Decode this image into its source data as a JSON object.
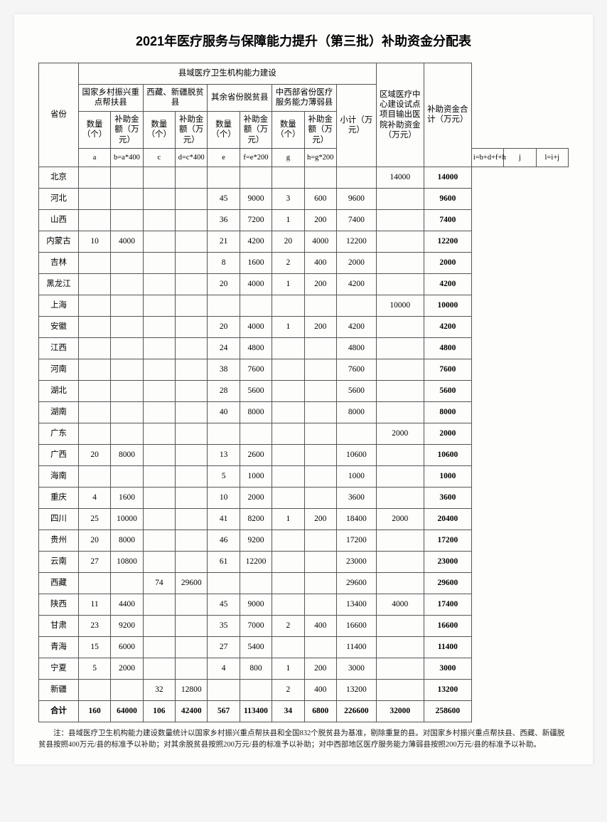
{
  "title": "2021年医疗服务与保障能力提升（第三批）补助资金分配表",
  "headers": {
    "province": "省份",
    "group_county": "县域医疗卫生机构能力建设",
    "group_a": "国家乡村振兴重点帮扶县",
    "group_c": "西藏、新疆脱贫县",
    "group_e": "其余省份脱贫县",
    "group_g": "中西部省份医疗服务能力薄弱县",
    "subtotal": "小计（万元）",
    "j": "区域医疗中心建设试点项目输出医院补助资金（万元）",
    "l": "补助资金合计（万元）",
    "qty": "数量（个）",
    "amt": "补助金额（万元）",
    "fa": "a",
    "fb": "b=a*400",
    "fc": "c",
    "fd": "d=c*400",
    "fe": "e",
    "ff": "f=e*200",
    "fg": "g",
    "fh": "h=g*200",
    "fi": "i=b+d+f+h",
    "fj": "j",
    "fl": "l=i+j"
  },
  "rows": [
    {
      "p": "北京",
      "a": "",
      "b": "",
      "c": "",
      "d": "",
      "e": "",
      "f": "",
      "g": "",
      "h": "",
      "i": "",
      "j": "14000",
      "l": "14000"
    },
    {
      "p": "河北",
      "a": "",
      "b": "",
      "c": "",
      "d": "",
      "e": "45",
      "f": "9000",
      "g": "3",
      "h": "600",
      "i": "9600",
      "j": "",
      "l": "9600"
    },
    {
      "p": "山西",
      "a": "",
      "b": "",
      "c": "",
      "d": "",
      "e": "36",
      "f": "7200",
      "g": "1",
      "h": "200",
      "i": "7400",
      "j": "",
      "l": "7400"
    },
    {
      "p": "内蒙古",
      "a": "10",
      "b": "4000",
      "c": "",
      "d": "",
      "e": "21",
      "f": "4200",
      "g": "20",
      "h": "4000",
      "i": "12200",
      "j": "",
      "l": "12200"
    },
    {
      "p": "吉林",
      "a": "",
      "b": "",
      "c": "",
      "d": "",
      "e": "8",
      "f": "1600",
      "g": "2",
      "h": "400",
      "i": "2000",
      "j": "",
      "l": "2000"
    },
    {
      "p": "黑龙江",
      "a": "",
      "b": "",
      "c": "",
      "d": "",
      "e": "20",
      "f": "4000",
      "g": "1",
      "h": "200",
      "i": "4200",
      "j": "",
      "l": "4200"
    },
    {
      "p": "上海",
      "a": "",
      "b": "",
      "c": "",
      "d": "",
      "e": "",
      "f": "",
      "g": "",
      "h": "",
      "i": "",
      "j": "10000",
      "l": "10000"
    },
    {
      "p": "安徽",
      "a": "",
      "b": "",
      "c": "",
      "d": "",
      "e": "20",
      "f": "4000",
      "g": "1",
      "h": "200",
      "i": "4200",
      "j": "",
      "l": "4200"
    },
    {
      "p": "江西",
      "a": "",
      "b": "",
      "c": "",
      "d": "",
      "e": "24",
      "f": "4800",
      "g": "",
      "h": "",
      "i": "4800",
      "j": "",
      "l": "4800"
    },
    {
      "p": "河南",
      "a": "",
      "b": "",
      "c": "",
      "d": "",
      "e": "38",
      "f": "7600",
      "g": "",
      "h": "",
      "i": "7600",
      "j": "",
      "l": "7600"
    },
    {
      "p": "湖北",
      "a": "",
      "b": "",
      "c": "",
      "d": "",
      "e": "28",
      "f": "5600",
      "g": "",
      "h": "",
      "i": "5600",
      "j": "",
      "l": "5600"
    },
    {
      "p": "湖南",
      "a": "",
      "b": "",
      "c": "",
      "d": "",
      "e": "40",
      "f": "8000",
      "g": "",
      "h": "",
      "i": "8000",
      "j": "",
      "l": "8000"
    },
    {
      "p": "广东",
      "a": "",
      "b": "",
      "c": "",
      "d": "",
      "e": "",
      "f": "",
      "g": "",
      "h": "",
      "i": "",
      "j": "2000",
      "l": "2000"
    },
    {
      "p": "广西",
      "a": "20",
      "b": "8000",
      "c": "",
      "d": "",
      "e": "13",
      "f": "2600",
      "g": "",
      "h": "",
      "i": "10600",
      "j": "",
      "l": "10600"
    },
    {
      "p": "海南",
      "a": "",
      "b": "",
      "c": "",
      "d": "",
      "e": "5",
      "f": "1000",
      "g": "",
      "h": "",
      "i": "1000",
      "j": "",
      "l": "1000"
    },
    {
      "p": "重庆",
      "a": "4",
      "b": "1600",
      "c": "",
      "d": "",
      "e": "10",
      "f": "2000",
      "g": "",
      "h": "",
      "i": "3600",
      "j": "",
      "l": "3600"
    },
    {
      "p": "四川",
      "a": "25",
      "b": "10000",
      "c": "",
      "d": "",
      "e": "41",
      "f": "8200",
      "g": "1",
      "h": "200",
      "i": "18400",
      "j": "2000",
      "l": "20400"
    },
    {
      "p": "贵州",
      "a": "20",
      "b": "8000",
      "c": "",
      "d": "",
      "e": "46",
      "f": "9200",
      "g": "",
      "h": "",
      "i": "17200",
      "j": "",
      "l": "17200"
    },
    {
      "p": "云南",
      "a": "27",
      "b": "10800",
      "c": "",
      "d": "",
      "e": "61",
      "f": "12200",
      "g": "",
      "h": "",
      "i": "23000",
      "j": "",
      "l": "23000"
    },
    {
      "p": "西藏",
      "a": "",
      "b": "",
      "c": "74",
      "d": "29600",
      "e": "",
      "f": "",
      "g": "",
      "h": "",
      "i": "29600",
      "j": "",
      "l": "29600"
    },
    {
      "p": "陕西",
      "a": "11",
      "b": "4400",
      "c": "",
      "d": "",
      "e": "45",
      "f": "9000",
      "g": "",
      "h": "",
      "i": "13400",
      "j": "4000",
      "l": "17400"
    },
    {
      "p": "甘肃",
      "a": "23",
      "b": "9200",
      "c": "",
      "d": "",
      "e": "35",
      "f": "7000",
      "g": "2",
      "h": "400",
      "i": "16600",
      "j": "",
      "l": "16600"
    },
    {
      "p": "青海",
      "a": "15",
      "b": "6000",
      "c": "",
      "d": "",
      "e": "27",
      "f": "5400",
      "g": "",
      "h": "",
      "i": "11400",
      "j": "",
      "l": "11400"
    },
    {
      "p": "宁夏",
      "a": "5",
      "b": "2000",
      "c": "",
      "d": "",
      "e": "4",
      "f": "800",
      "g": "1",
      "h": "200",
      "i": "3000",
      "j": "",
      "l": "3000"
    },
    {
      "p": "新疆",
      "a": "",
      "b": "",
      "c": "32",
      "d": "12800",
      "e": "",
      "f": "",
      "g": "2",
      "h": "400",
      "i": "13200",
      "j": "",
      "l": "13200"
    }
  ],
  "total": {
    "p": "合计",
    "a": "160",
    "b": "64000",
    "c": "106",
    "d": "42400",
    "e": "567",
    "f": "113400",
    "g": "34",
    "h": "6800",
    "i": "226600",
    "j": "32000",
    "l": "258600"
  },
  "note": "注：县域医疗卫生机构能力建设数量统计以国家乡村振兴重点帮扶县和全国832个脱贫县为基准，剔除重复的县。对国家乡村振兴重点帮扶县、西藏、新疆脱贫县按照400万元/县的标准予以补助；对其余脱贫县按照200万元/县的标准予以补助；对中西部地区医疗服务能力薄弱县按照200万元/县的标准予以补助。"
}
